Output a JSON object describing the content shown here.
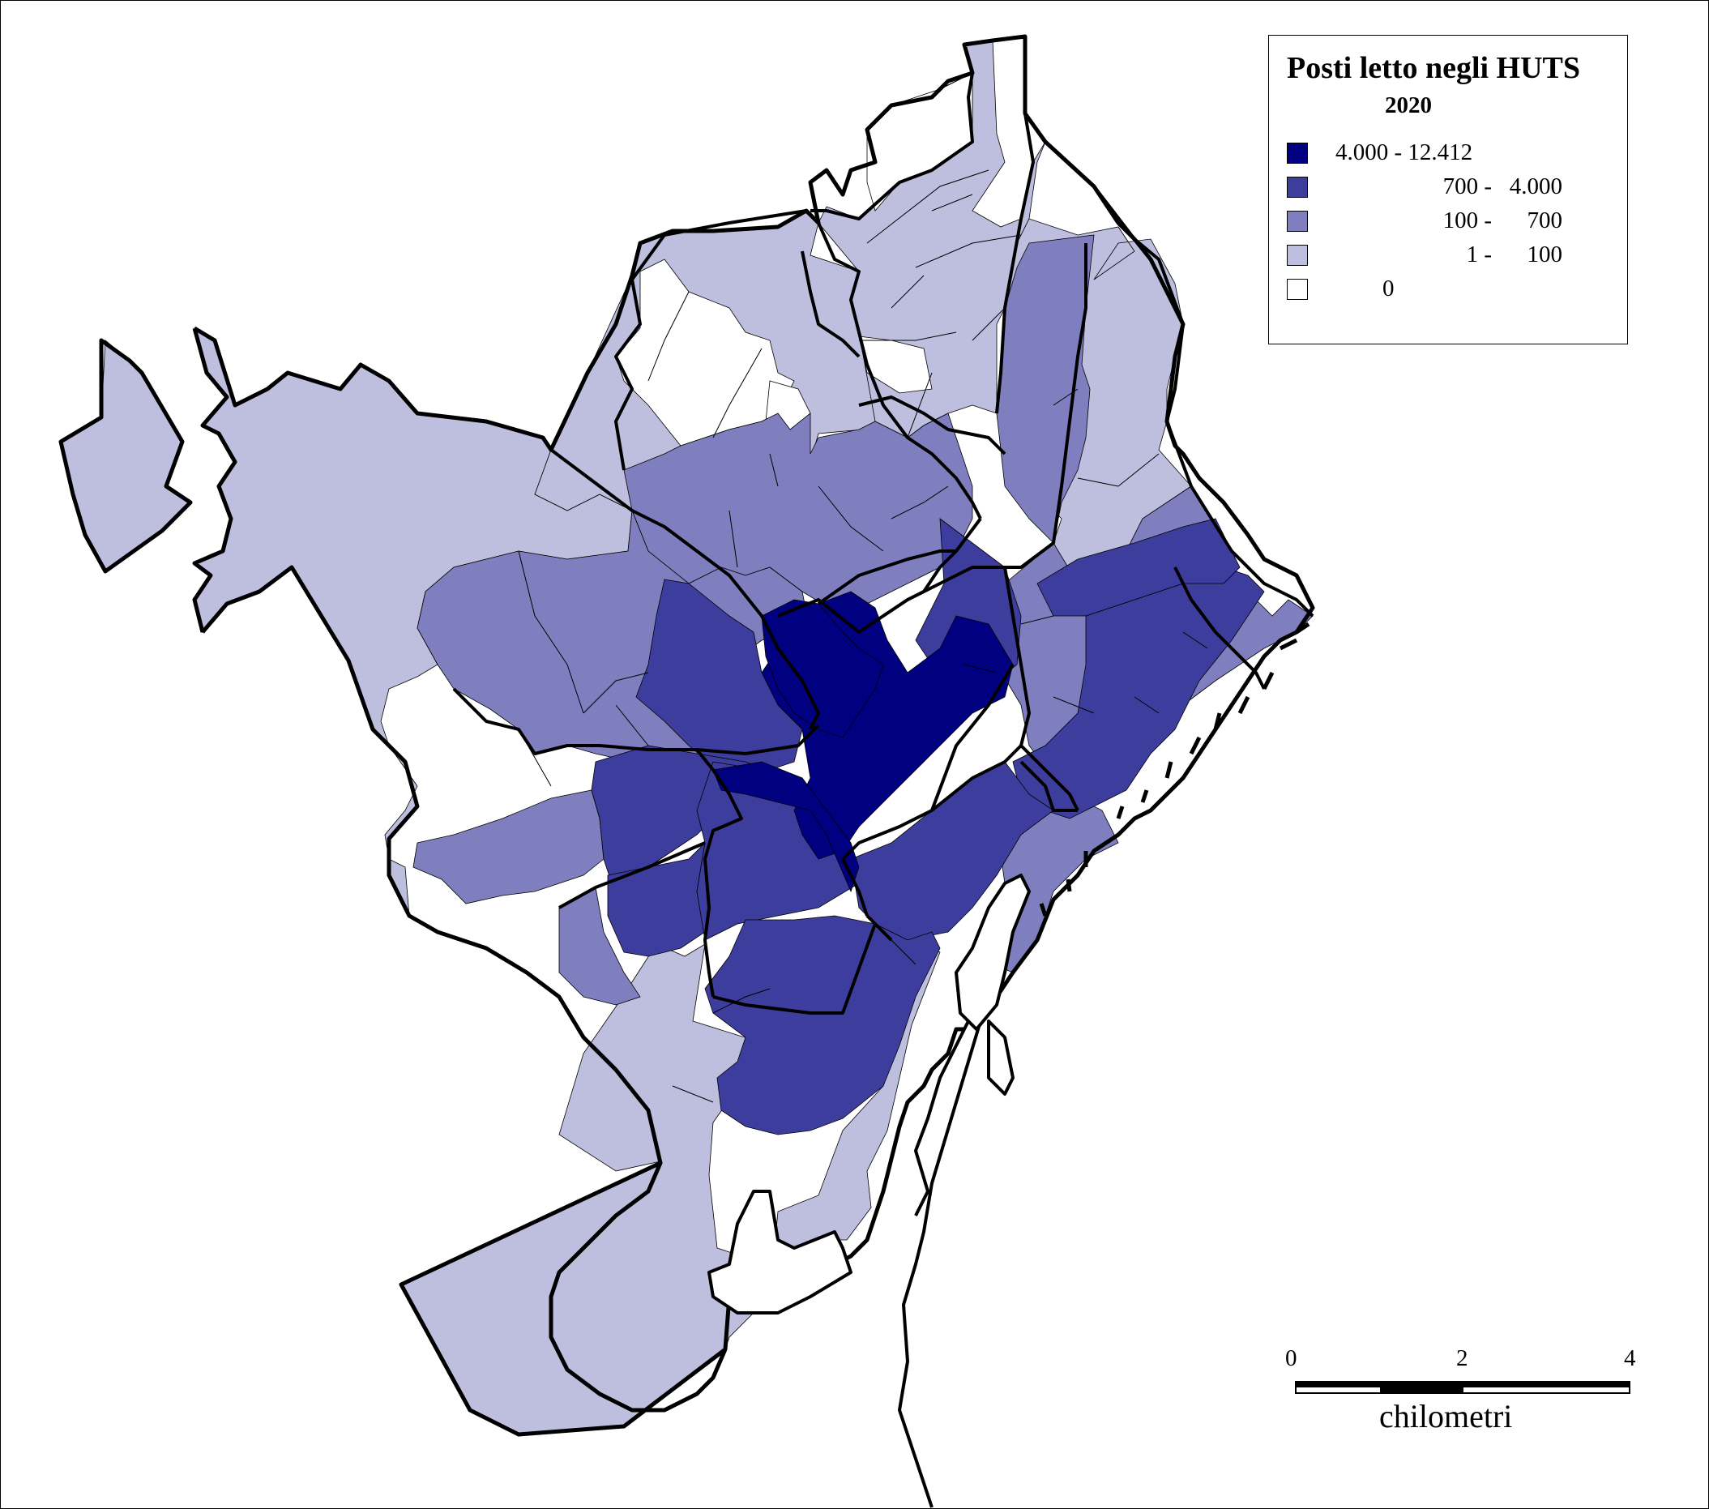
{
  "map": {
    "colors": {
      "c5": "#000080",
      "c4": "#3d3d9e",
      "c3": "#7f7fbf",
      "c2": "#bebede",
      "c1": "#ffffff",
      "outline": "#000000"
    }
  },
  "legend": {
    "title": "Posti letto negli HUTS",
    "year": "2020",
    "classes": [
      {
        "label": "4.000 - 12.412",
        "color": "#000080"
      },
      {
        "label": "700 -   4.000",
        "color": "#3d3d9e"
      },
      {
        "label": "100 -      700",
        "color": "#7f7fbf"
      },
      {
        "label": "1 -      100",
        "color": "#bebede"
      },
      {
        "label": "0",
        "color": "#ffffff"
      }
    ]
  },
  "scale_bar": {
    "ticks": [
      "0",
      "2",
      "4"
    ],
    "unit": "chilometri"
  }
}
